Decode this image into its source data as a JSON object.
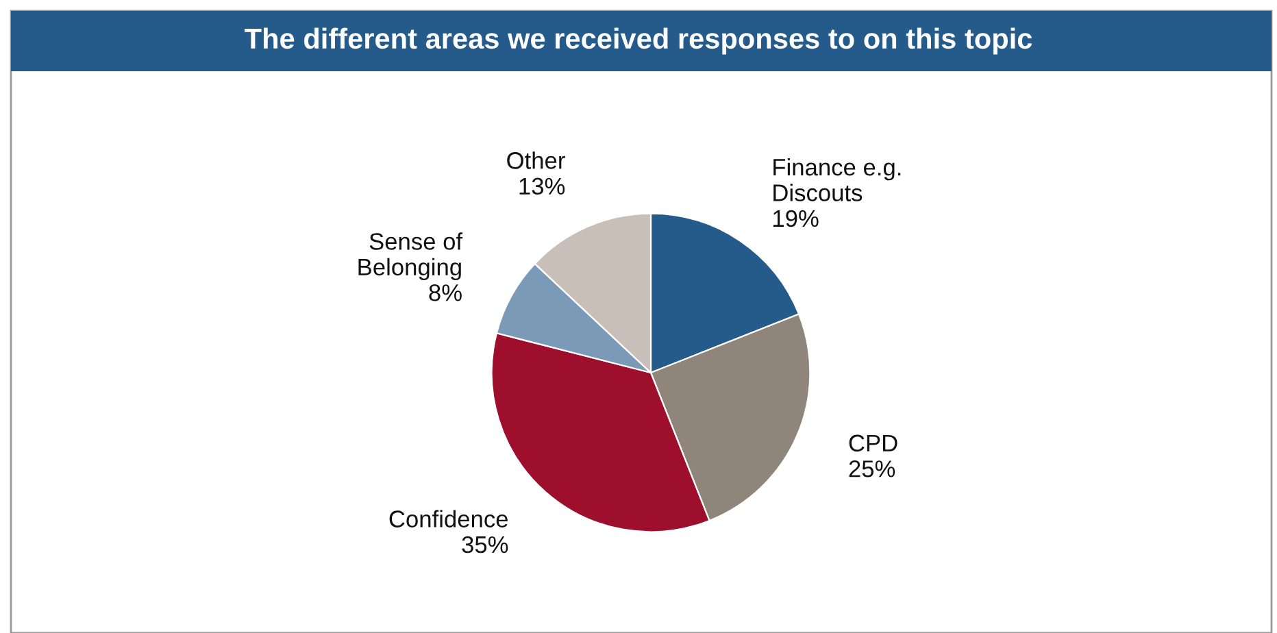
{
  "chart_data": {
    "type": "pie",
    "title": "The different areas we received responses to on this topic",
    "categories": [
      "Finance e.g.\nDiscouts",
      "CPD",
      "Confidence",
      "Sense of\nBelonging",
      "Other"
    ],
    "values": [
      19,
      25,
      35,
      8,
      13
    ],
    "colors": [
      "#245b8a",
      "#8f857a",
      "#9e0f2d",
      "#7a9ab8",
      "#c8c0b8"
    ],
    "value_labels": [
      "19%",
      "25%",
      "35%",
      "8%",
      "13%"
    ]
  }
}
